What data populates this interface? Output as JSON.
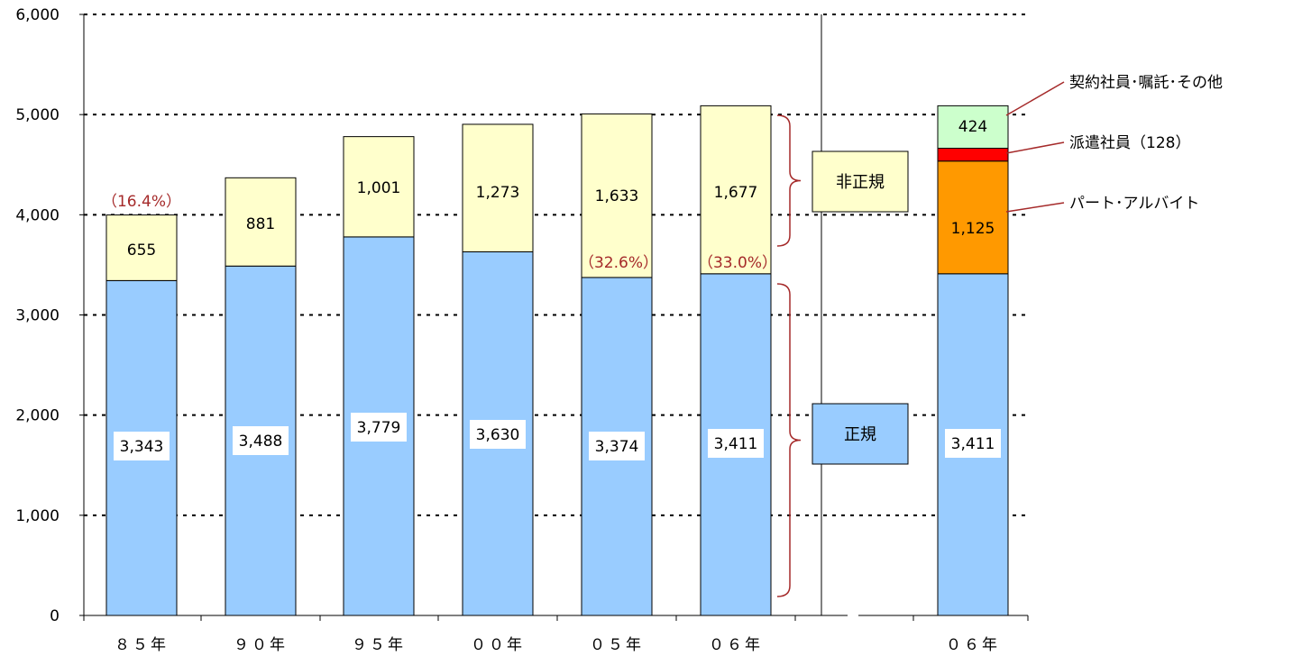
{
  "chart_data": {
    "type": "bar",
    "stacked": true,
    "ylim": [
      0,
      6000
    ],
    "yticks": [
      "0",
      "1,000",
      "2,000",
      "3,000",
      "4,000",
      "5,000",
      "6,000"
    ],
    "grid": "dotted horizontal",
    "categories": [
      "８５年",
      "９０年",
      "９５年",
      "００年",
      "０５年",
      "０６年"
    ],
    "series": [
      {
        "name": "正規",
        "color": "#99ccff",
        "values": [
          3343,
          3488,
          3779,
          3630,
          3374,
          3411
        ],
        "labels": [
          "3,343",
          "3,488",
          "3,779",
          "3,630",
          "3,374",
          "3,411"
        ]
      },
      {
        "name": "非正規",
        "color": "#ffffcc",
        "values": [
          655,
          881,
          1001,
          1273,
          1633,
          1677
        ],
        "labels": [
          "655",
          "881",
          "1,001",
          "1,273",
          "1,633",
          "1,677"
        ]
      }
    ],
    "ratio_labels": [
      {
        "category_index": 0,
        "text": "（16.4%）"
      },
      {
        "category_index": 4,
        "text": "（32.6%）"
      },
      {
        "category_index": 5,
        "text": "（33.0%）"
      }
    ],
    "group_labels": {
      "nonregular": "非正規",
      "regular": "正規"
    },
    "breakdown": {
      "category": "０６年",
      "segments": [
        {
          "name": "正規",
          "value": 3411,
          "label": "3,411",
          "color": "#99ccff"
        },
        {
          "name": "パート･アルバイト",
          "value": 1125,
          "label": "1,125",
          "color": "#ff9900"
        },
        {
          "name": "派遣社員（128）",
          "value": 128,
          "label": "",
          "color": "#ff0000"
        },
        {
          "name": "契約社員･嘱託･その他",
          "value": 424,
          "label": "424",
          "color": "#ccffcc"
        }
      ]
    }
  }
}
